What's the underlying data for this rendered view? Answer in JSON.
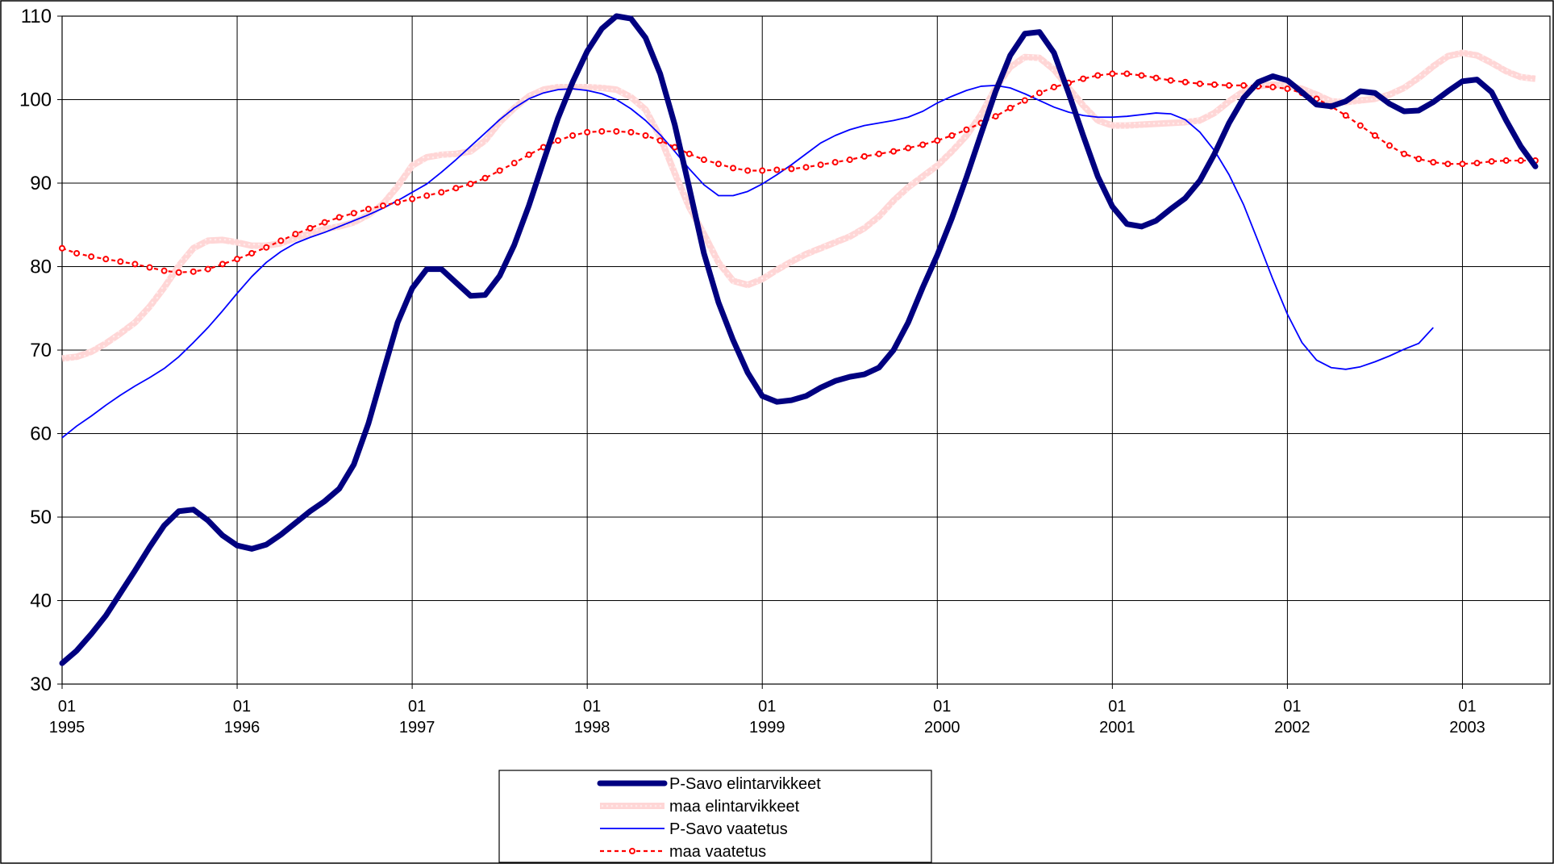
{
  "chart_data": {
    "type": "line",
    "title": "",
    "xlabel": "",
    "ylabel": "",
    "ylim": [
      30,
      110
    ],
    "y_ticks": [
      "30",
      "40",
      "50",
      "60",
      "70",
      "80",
      "90",
      "100",
      "110"
    ],
    "xlim": [
      0,
      102
    ],
    "x_ticks": [
      {
        "month": "01",
        "year": "1995"
      },
      {
        "month": "01",
        "year": "1996"
      },
      {
        "month": "01",
        "year": "1997"
      },
      {
        "month": "01",
        "year": "1998"
      },
      {
        "month": "01",
        "year": "1999"
      },
      {
        "month": "01",
        "year": "2000"
      },
      {
        "month": "01",
        "year": "2001"
      },
      {
        "month": "01",
        "year": "2002"
      },
      {
        "month": "01",
        "year": "2003"
      }
    ],
    "grid": true,
    "legend_position": "bottom",
    "series": [
      {
        "name": "P-Savo elintarvikkeet",
        "color": "#000080",
        "style": "thick",
        "values": [
          32.5,
          34.0,
          36.0,
          38.2,
          40.9,
          43.6,
          46.4,
          49.0,
          50.7,
          50.9,
          49.6,
          47.8,
          46.6,
          46.2,
          46.7,
          47.9,
          49.3,
          50.7,
          51.9,
          53.4,
          56.3,
          61.2,
          67.3,
          73.3,
          77.4,
          79.7,
          79.7,
          78.1,
          76.5,
          76.6,
          78.9,
          82.6,
          87.3,
          92.6,
          97.8,
          102.1,
          105.8,
          108.5,
          110.0,
          109.7,
          107.4,
          103.1,
          97.0,
          89.4,
          81.6,
          75.7,
          71.2,
          67.3,
          64.5,
          63.8,
          64.0,
          64.5,
          65.5,
          66.3,
          66.8,
          67.1,
          67.9,
          70.0,
          73.3,
          77.5,
          81.4,
          85.8,
          90.7,
          95.9,
          101.0,
          105.3,
          107.9,
          108.1,
          105.6,
          100.8,
          95.7,
          90.8,
          87.2,
          85.1,
          84.8,
          85.5,
          86.9,
          88.2,
          90.3,
          93.5,
          97.2,
          100.2,
          102.1,
          102.8,
          102.3,
          100.9,
          99.4,
          99.2,
          99.8,
          101.0,
          100.8,
          99.5,
          98.6,
          98.7,
          99.7,
          101.0,
          102.2,
          102.4,
          100.9,
          97.5,
          94.4,
          92.0
        ]
      },
      {
        "name": "maa elintarvikkeet",
        "color": "#ffcccc",
        "style": "thick-hatched",
        "values": [
          69.0,
          69.2,
          69.8,
          70.8,
          72.0,
          73.3,
          75.2,
          77.5,
          80.1,
          82.2,
          83.1,
          83.2,
          82.9,
          82.5,
          82.5,
          82.8,
          83.4,
          84.0,
          84.5,
          84.8,
          85.3,
          86.2,
          87.5,
          89.6,
          92.1,
          93.1,
          93.4,
          93.5,
          93.8,
          95.1,
          97.3,
          99.0,
          100.4,
          101.2,
          101.5,
          101.5,
          101.5,
          101.4,
          101.2,
          100.3,
          98.8,
          95.5,
          91.2,
          87.1,
          83.9,
          80.5,
          78.3,
          77.8,
          78.5,
          79.6,
          80.6,
          81.5,
          82.2,
          82.9,
          83.6,
          84.6,
          86.0,
          87.9,
          89.5,
          90.8,
          92.1,
          93.8,
          95.7,
          98.2,
          101.4,
          103.9,
          105.1,
          105.0,
          103.6,
          101.4,
          99.3,
          97.5,
          96.9,
          96.9,
          97.0,
          97.1,
          97.2,
          97.3,
          97.5,
          98.4,
          99.8,
          101.0,
          101.6,
          101.8,
          101.7,
          101.3,
          100.6,
          99.8,
          99.7,
          99.9,
          100.1,
          100.6,
          101.4,
          102.6,
          104.0,
          105.2,
          105.6,
          105.3,
          104.4,
          103.4,
          102.7,
          102.5
        ]
      },
      {
        "name": "P-Savo vaatetus",
        "color": "#0000ff",
        "style": "thin",
        "values": [
          59.5,
          60.9,
          62.1,
          63.4,
          64.6,
          65.7,
          66.7,
          67.8,
          69.2,
          70.9,
          72.7,
          74.7,
          76.8,
          78.8,
          80.5,
          81.8,
          82.8,
          83.5,
          84.1,
          84.8,
          85.5,
          86.2,
          87.0,
          87.9,
          88.9,
          89.9,
          91.3,
          92.8,
          94.4,
          96.0,
          97.6,
          99.0,
          100.1,
          100.8,
          101.2,
          101.3,
          101.1,
          100.7,
          100.0,
          98.9,
          97.5,
          95.8,
          93.8,
          91.7,
          89.8,
          88.5,
          88.5,
          89.0,
          89.9,
          91.0,
          92.2,
          93.5,
          94.8,
          95.7,
          96.4,
          96.9,
          97.2,
          97.5,
          97.9,
          98.6,
          99.6,
          100.4,
          101.1,
          101.6,
          101.7,
          101.4,
          100.7,
          99.9,
          99.1,
          98.5,
          98.1,
          97.9,
          97.9,
          98.0,
          98.2,
          98.4,
          98.3,
          97.6,
          96.1,
          93.9,
          91.0,
          87.4,
          83.0,
          78.5,
          74.3,
          70.9,
          68.8,
          67.9,
          67.7,
          68.0,
          68.6,
          69.3,
          70.1,
          70.8,
          72.7
        ]
      },
      {
        "name": "maa vaatetus",
        "color": "#ff0000",
        "style": "dashed-markers",
        "values": [
          82.2,
          81.6,
          81.2,
          80.9,
          80.6,
          80.3,
          79.9,
          79.5,
          79.3,
          79.4,
          79.7,
          80.3,
          80.9,
          81.6,
          82.3,
          83.1,
          83.9,
          84.6,
          85.3,
          85.9,
          86.4,
          86.9,
          87.3,
          87.7,
          88.1,
          88.5,
          88.9,
          89.4,
          89.9,
          90.6,
          91.5,
          92.4,
          93.4,
          94.3,
          95.1,
          95.7,
          96.1,
          96.2,
          96.2,
          96.1,
          95.7,
          95.1,
          94.3,
          93.5,
          92.8,
          92.3,
          91.8,
          91.5,
          91.5,
          91.6,
          91.7,
          91.9,
          92.2,
          92.5,
          92.8,
          93.2,
          93.5,
          93.8,
          94.2,
          94.6,
          95.1,
          95.7,
          96.4,
          97.2,
          98.0,
          99.0,
          99.9,
          100.8,
          101.5,
          102.0,
          102.5,
          102.9,
          103.1,
          103.1,
          102.9,
          102.6,
          102.3,
          102.1,
          101.9,
          101.8,
          101.7,
          101.7,
          101.6,
          101.5,
          101.3,
          100.8,
          100.1,
          99.2,
          98.1,
          96.9,
          95.7,
          94.5,
          93.5,
          92.9,
          92.5,
          92.3,
          92.3,
          92.4,
          92.6,
          92.7,
          92.7,
          92.7
        ]
      }
    ]
  }
}
